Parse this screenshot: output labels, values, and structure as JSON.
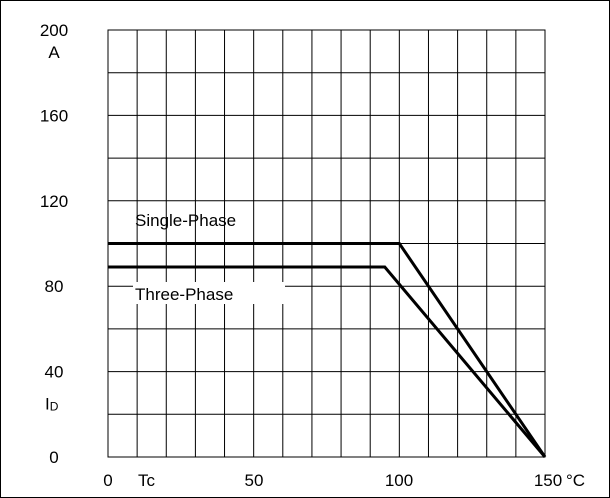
{
  "chart_data": {
    "type": "line",
    "x_unit_label": "Tc",
    "x_unit": "°C",
    "y_unit": "A",
    "y_symbol": "I",
    "y_symbol_sub": "D",
    "x_ticks": [
      0,
      50,
      100,
      150
    ],
    "y_ticks": [
      0,
      40,
      80,
      120,
      160,
      200
    ],
    "xlim": [
      0,
      150
    ],
    "ylim": [
      0,
      200
    ],
    "grid": true,
    "x_grid_step": 10,
    "y_grid_step": 20,
    "series": [
      {
        "name": "Single-Phase",
        "x": [
          0,
          100,
          150
        ],
        "y": [
          100,
          100,
          0
        ]
      },
      {
        "name": "Three-Phase",
        "x": [
          0,
          95,
          150
        ],
        "y": [
          89,
          89,
          0
        ]
      }
    ],
    "color": "#000000"
  }
}
